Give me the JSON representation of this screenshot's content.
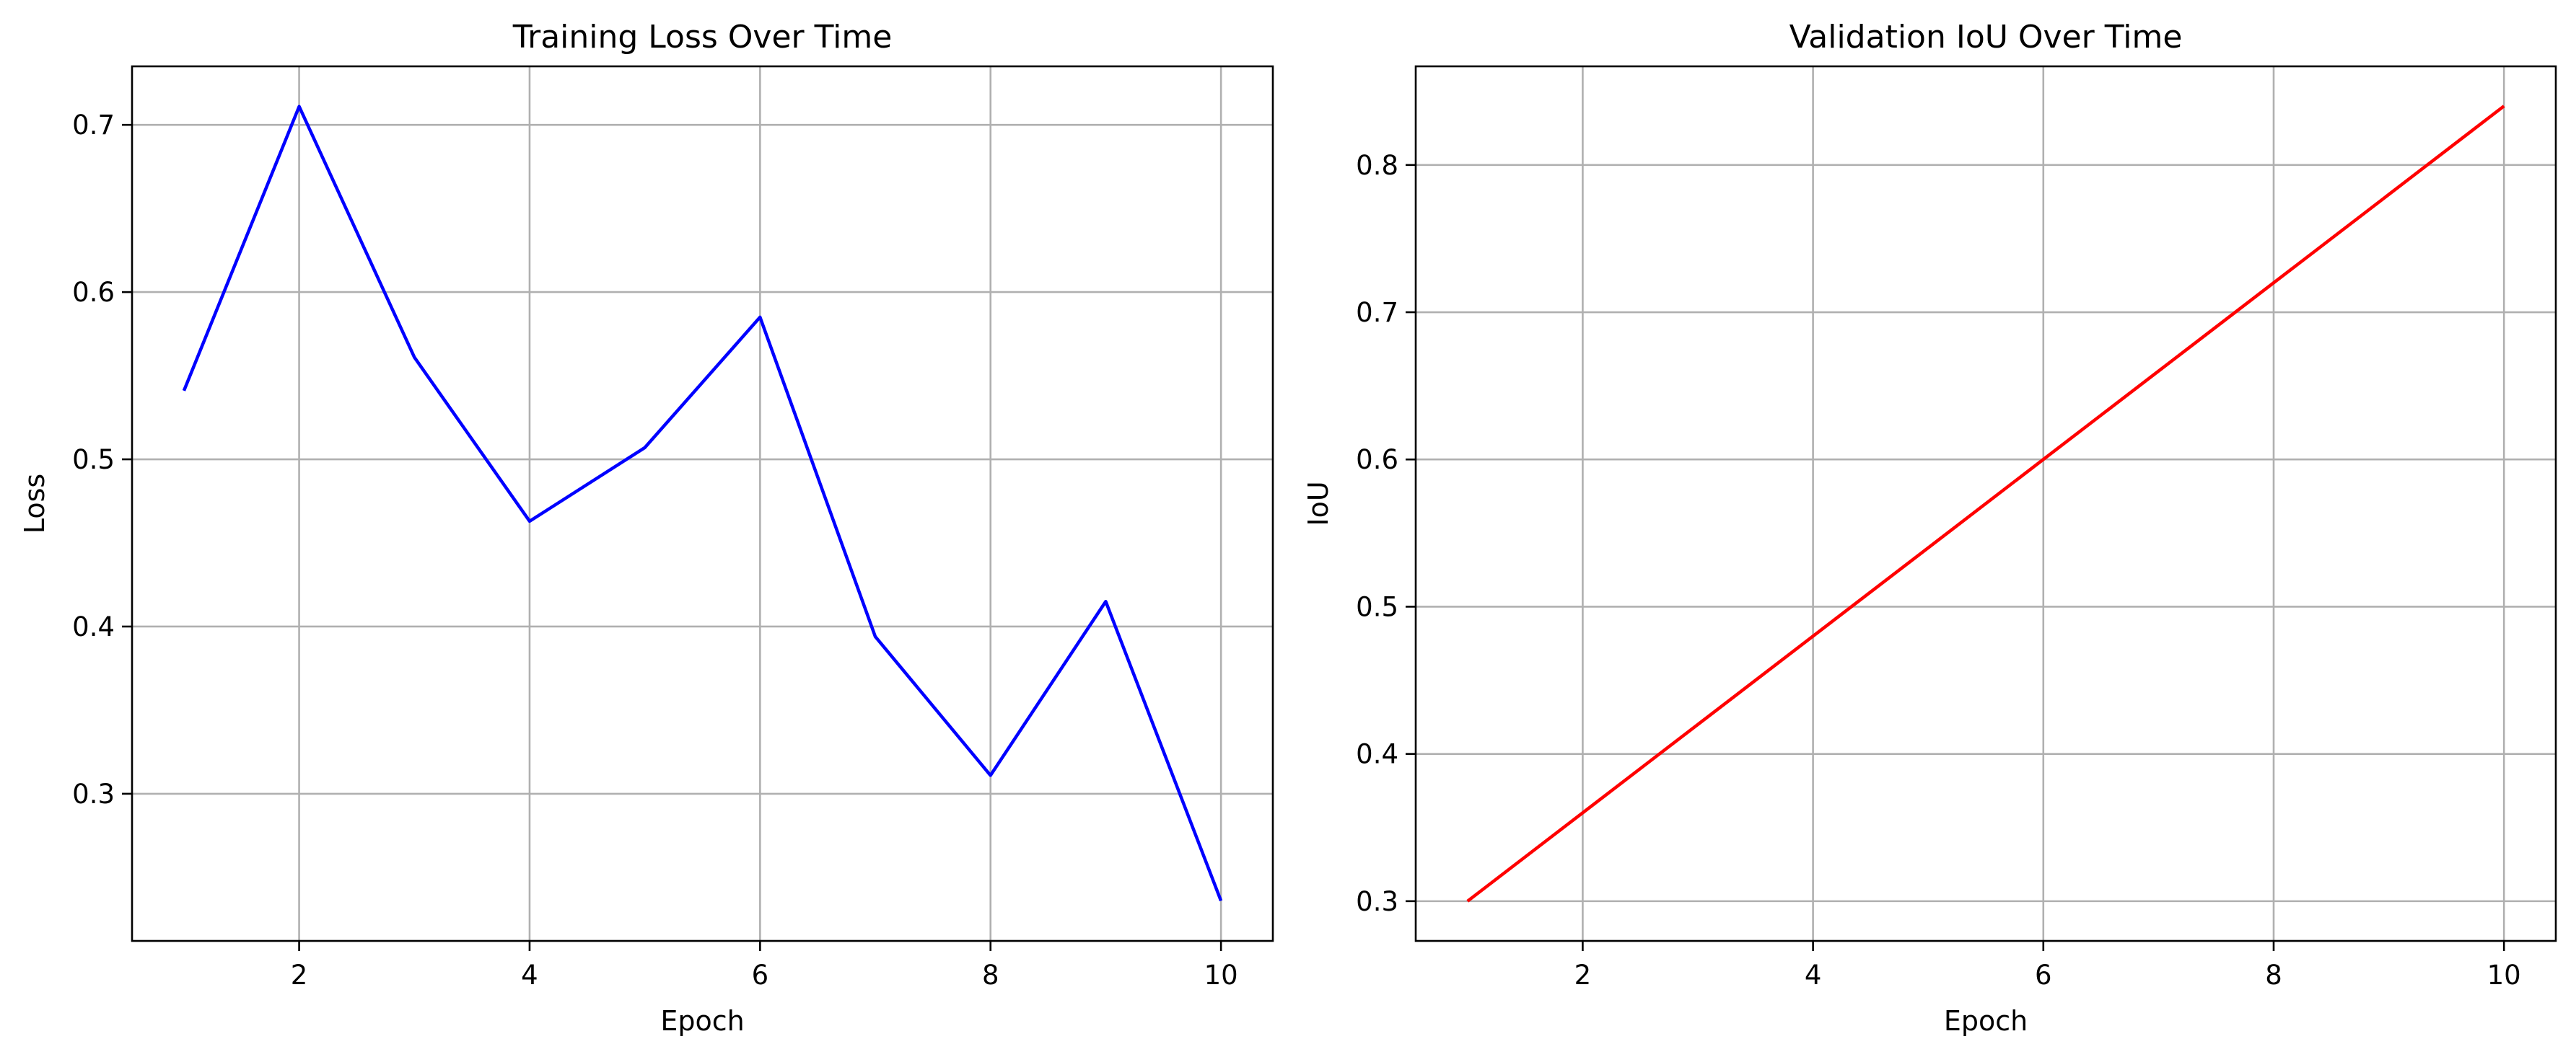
{
  "chart_data": [
    {
      "type": "line",
      "title": "Training Loss Over Time",
      "xlabel": "Epoch",
      "ylabel": "Loss",
      "x": [
        1,
        2,
        3,
        4,
        5,
        6,
        7,
        8,
        9,
        10
      ],
      "series": [
        {
          "values": [
            0.541,
            0.711,
            0.561,
            0.463,
            0.507,
            0.585,
            0.394,
            0.311,
            0.415,
            0.236
          ],
          "color": "#0000ff"
        }
      ],
      "xlim": [
        0.55,
        10.45
      ],
      "ylim": [
        0.212,
        0.735
      ],
      "xticks": [
        2,
        4,
        6,
        8,
        10
      ],
      "yticks": [
        0.3,
        0.4,
        0.5,
        0.6,
        0.7
      ],
      "xtick_labels": [
        "2",
        "4",
        "6",
        "8",
        "10"
      ],
      "ytick_labels": [
        "0.3",
        "0.4",
        "0.5",
        "0.6",
        "0.7"
      ],
      "grid": true,
      "legend": "none"
    },
    {
      "type": "line",
      "title": "Validation IoU Over Time",
      "xlabel": "Epoch",
      "ylabel": "IoU",
      "x": [
        1,
        2,
        3,
        4,
        5,
        6,
        7,
        8,
        9,
        10
      ],
      "series": [
        {
          "values": [
            0.3,
            0.36,
            0.42,
            0.48,
            0.54,
            0.6,
            0.66,
            0.72,
            0.78,
            0.84
          ],
          "color": "#ff0000"
        }
      ],
      "xlim": [
        0.55,
        10.45
      ],
      "ylim": [
        0.273,
        0.867
      ],
      "xticks": [
        2,
        4,
        6,
        8,
        10
      ],
      "yticks": [
        0.3,
        0.4,
        0.5,
        0.6,
        0.7,
        0.8
      ],
      "xtick_labels": [
        "2",
        "4",
        "6",
        "8",
        "10"
      ],
      "ytick_labels": [
        "0.3",
        "0.4",
        "0.5",
        "0.6",
        "0.7",
        "0.8"
      ],
      "grid": true,
      "legend": "none"
    }
  ]
}
